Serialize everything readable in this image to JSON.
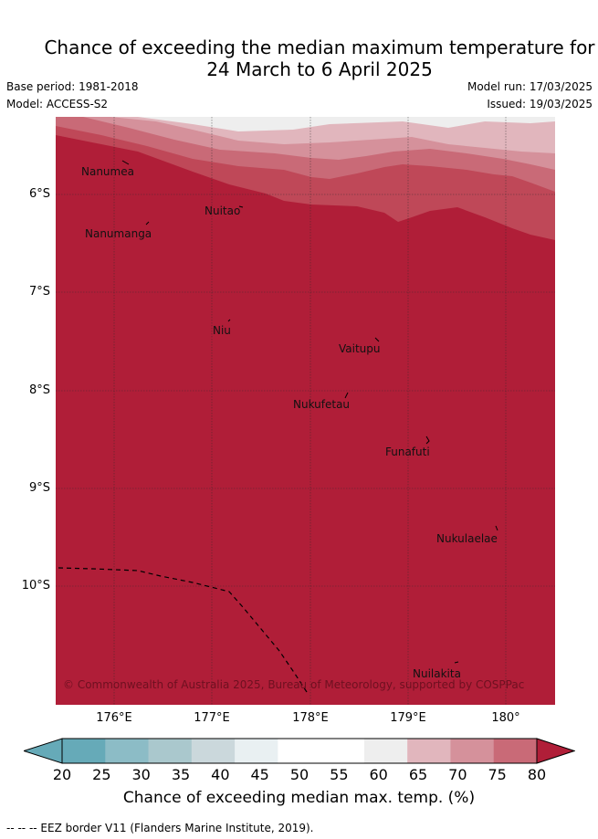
{
  "title": {
    "line1": "Chance of exceeding the median maximum temperature for",
    "line2": "24 March to 6 April 2025"
  },
  "meta": {
    "base_period": "Base period: 1981-2018",
    "model": "Model: ACCESS-S2",
    "model_run": "Model run: 17/03/2025",
    "issued": "Issued: 19/03/2025"
  },
  "map": {
    "lat_labels": [
      "6°S",
      "7°S",
      "8°S",
      "9°S",
      "10°S"
    ],
    "lon_labels": [
      "176°E",
      "177°E",
      "178°E",
      "179°E",
      "180°"
    ],
    "islands": [
      "Nanumea",
      "Nanumanga",
      "Nuitao",
      "Niu",
      "Vaitupu",
      "Nukufetau",
      "Funafuti",
      "Nukulaelae",
      "Nuilakita"
    ],
    "copyright": "© Commonwealth of Australia 2025, Bureau of Meteorology, supported by COSPPac"
  },
  "colorbar": {
    "ticks": [
      "20",
      "25",
      "30",
      "35",
      "40",
      "45",
      "50",
      "55",
      "60",
      "65",
      "70",
      "75",
      "80"
    ],
    "colors": [
      "#66aab8",
      "#8cbcc6",
      "#aac8cd",
      "#cbd8dc",
      "#e9f0f2",
      "#ffffff",
      "#ffffff",
      "#eeeeee",
      "#e1b6bd",
      "#d5919b",
      "#c96a77",
      "#bf4858",
      "#b01e38"
    ],
    "label": "Chance of exceeding median max. temp. (%)"
  },
  "footnote": "-- -- -- EEZ border V11 (Flanders Marine Institute, 2019)."
}
